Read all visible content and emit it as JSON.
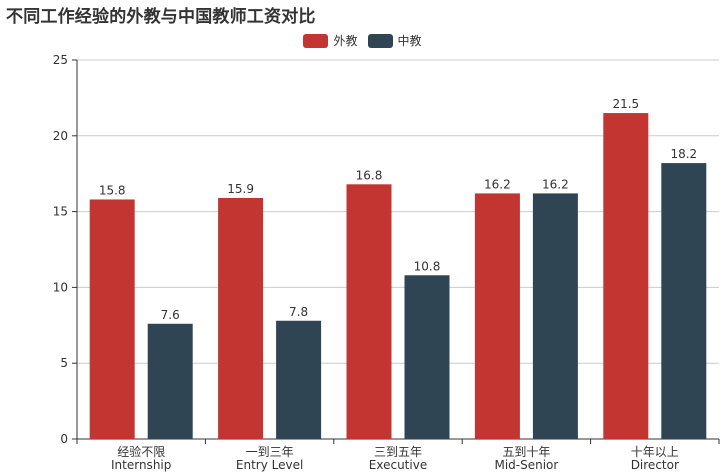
{
  "chart_data": {
    "type": "bar",
    "title": "不同工作经验的外教与中国教师工资对比",
    "categories": [
      [
        "经验不限",
        "Internship"
      ],
      [
        "一到三年",
        "Entry Level"
      ],
      [
        "三到五年",
        "Executive"
      ],
      [
        "五到十年",
        "Mid-Senior"
      ],
      [
        "十年以上",
        "Director"
      ]
    ],
    "series": [
      {
        "name": "外教",
        "color": "#c23531",
        "values": [
          15.8,
          15.9,
          16.8,
          16.2,
          21.5
        ]
      },
      {
        "name": "中教",
        "color": "#2f4554",
        "values": [
          7.6,
          7.8,
          10.8,
          16.2,
          18.2
        ]
      }
    ],
    "ylim": [
      0,
      25
    ],
    "yticks": [
      0,
      5,
      10,
      15,
      20,
      25
    ],
    "grid": true,
    "legend_position": "top-center"
  }
}
